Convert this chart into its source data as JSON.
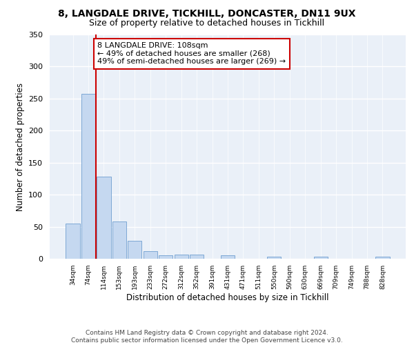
{
  "title1": "8, LANGDALE DRIVE, TICKHILL, DONCASTER, DN11 9UX",
  "title2": "Size of property relative to detached houses in Tickhill",
  "xlabel": "Distribution of detached houses by size in Tickhill",
  "ylabel": "Number of detached properties",
  "categories": [
    "34sqm",
    "74sqm",
    "114sqm",
    "153sqm",
    "193sqm",
    "233sqm",
    "272sqm",
    "312sqm",
    "352sqm",
    "391sqm",
    "431sqm",
    "471sqm",
    "511sqm",
    "550sqm",
    "590sqm",
    "630sqm",
    "669sqm",
    "709sqm",
    "749sqm",
    "788sqm",
    "828sqm"
  ],
  "values": [
    55,
    257,
    128,
    58,
    28,
    12,
    5,
    6,
    6,
    0,
    5,
    0,
    0,
    3,
    0,
    0,
    3,
    0,
    0,
    0,
    3
  ],
  "bar_color": "#c5d8f0",
  "bar_edge_color": "#5a90c8",
  "vline_color": "#cc0000",
  "annotation_text": "8 LANGDALE DRIVE: 108sqm\n← 49% of detached houses are smaller (268)\n49% of semi-detached houses are larger (269) →",
  "annotation_box_color": "#ffffff",
  "annotation_box_edge_color": "#cc0000",
  "ylim": [
    0,
    350
  ],
  "yticks": [
    0,
    50,
    100,
    150,
    200,
    250,
    300,
    350
  ],
  "bg_color": "#eaf0f8",
  "footer": "Contains HM Land Registry data © Crown copyright and database right 2024.\nContains public sector information licensed under the Open Government Licence v3.0.",
  "grid_color": "#ffffff",
  "title1_fontsize": 10,
  "title2_fontsize": 9,
  "xlabel_fontsize": 8.5,
  "ylabel_fontsize": 8.5,
  "annotation_fontsize": 8,
  "footer_fontsize": 6.5
}
